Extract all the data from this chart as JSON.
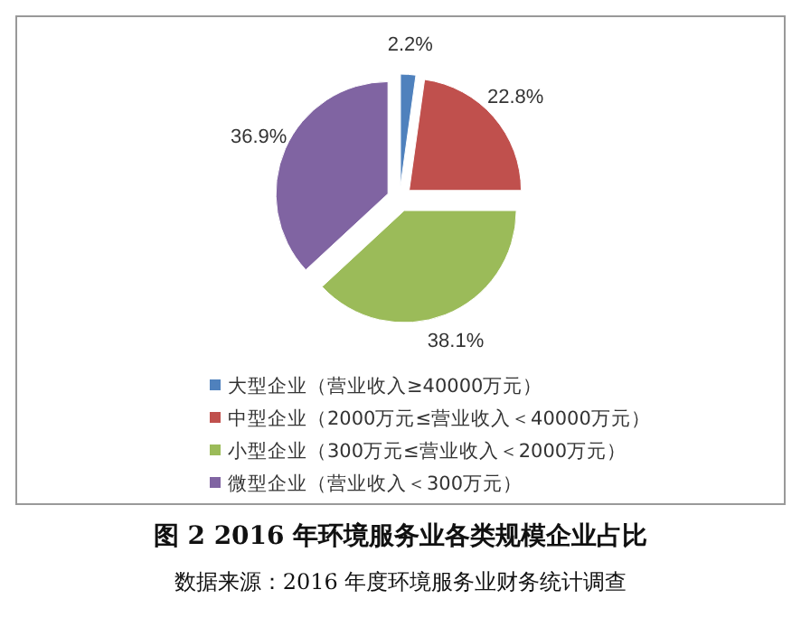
{
  "chart_data": {
    "type": "pie",
    "title": "图 2  2016 年环境服务业各类规模企业占比",
    "annotations": [
      "数据来源：2016 年度环境服务业财务统计调查"
    ],
    "categories": [
      "大型企业（营业收入≥40000万元）",
      "中型企业（2000万元≤营业收入＜40000万元）",
      "小型企业（300万元≤营业收入＜2000万元）",
      "微型企业（营业收入＜300万元）"
    ],
    "values": [
      2.2,
      22.8,
      38.1,
      36.9
    ],
    "value_labels": [
      "2.2%",
      "22.8%",
      "38.1%",
      "36.9%"
    ],
    "colors": [
      "#4f81bd",
      "#c0504d",
      "#9bbb59",
      "#8064a2"
    ],
    "legend": "bottom"
  }
}
